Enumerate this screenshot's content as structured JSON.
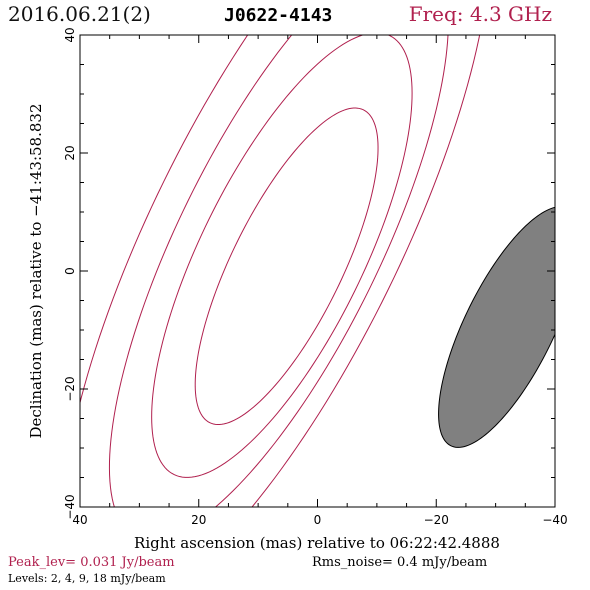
{
  "header": {
    "date": "2016.06.21(2)",
    "source": "J0622-4143",
    "freq": "Freq: 4.3 GHz"
  },
  "footer": {
    "peak": "Peak_lev=  0.031 Jy/beam",
    "rms": "Rms_noise=   0.4 mJy/beam",
    "levels": "Levels:   2,    4,    9,   18 mJy/beam"
  },
  "colors": {
    "contour": "#b0204e",
    "beam_fill": "#808080",
    "header_freq": "#b0204e"
  },
  "chart_data": {
    "type": "contour",
    "xlabel": "Right ascension (mas) relative to 06:22:42.4888",
    "ylabel": "Declination (mas) relative to −41:43:58.832",
    "xlim": [
      40,
      -40
    ],
    "ylim": [
      -40,
      40
    ],
    "xticks": [
      40,
      20,
      0,
      -20,
      -40
    ],
    "yticks": [
      -40,
      -20,
      0,
      20,
      40
    ],
    "xtick_labels": [
      "40",
      "20",
      "0",
      "−20",
      "−40"
    ],
    "ytick_labels": [
      "−40",
      "−20",
      "0",
      "20",
      "40"
    ],
    "contour_levels_mJy": [
      2,
      4,
      9,
      18
    ],
    "peak_Jy_per_beam": 0.031,
    "rms_mJy_per_beam": 0.4,
    "contours": [
      {
        "level": 18,
        "center": [
          5.2,
          0.8
        ],
        "semi_major": 29.5,
        "semi_minor": 9.3,
        "angle_deg": 64.0
      },
      {
        "level": 9,
        "center": [
          6.0,
          2.7
        ],
        "semi_major": 41.4,
        "semi_minor": 13.7,
        "angle_deg": 64.0
      },
      {
        "level": 4,
        "center": [
          6.5,
          4.5
        ],
        "semi_major": 55.0,
        "semi_minor": 17.0,
        "angle_deg": 64.0
      },
      {
        "level": 2,
        "center": [
          7.0,
          6.0
        ],
        "semi_major": 70.0,
        "semi_minor": 21.0,
        "angle_deg": 64.0
      }
    ],
    "beam": {
      "center": [
        -32.3,
        -9.5
      ],
      "semi_major": 22.4,
      "semi_minor": 7.5,
      "angle_deg": 64.0
    }
  }
}
